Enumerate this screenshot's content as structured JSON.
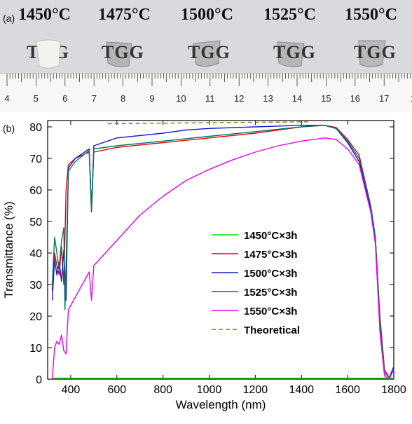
{
  "panel_a": {
    "label": "(a)",
    "temperatures": [
      "1450°C",
      "1475°C",
      "1500°C",
      "1525°C",
      "1550°C"
    ],
    "sample_text": "TGG",
    "ruler_numbers": [
      "4",
      "5",
      "6",
      "7",
      "8",
      "9",
      "10",
      "11",
      "12",
      "13",
      "14",
      "15",
      "16",
      "17",
      "1"
    ]
  },
  "panel_b": {
    "label": "(b)"
  },
  "chart_data": {
    "type": "line",
    "xlabel": "Wavelength (nm)",
    "ylabel": "Transmittance (%)",
    "xlim": [
      300,
      1800
    ],
    "ylim": [
      0,
      82
    ],
    "x_ticks": [
      400,
      600,
      800,
      1000,
      1200,
      1400,
      1600,
      1800
    ],
    "y_ticks": [
      0,
      10,
      20,
      30,
      40,
      50,
      60,
      70,
      80
    ],
    "legend_position": "center-right",
    "series": [
      {
        "name": "1450°C×3h",
        "color": "#00dd00",
        "dash": false,
        "points": [
          [
            320,
            0.3
          ],
          [
            500,
            0.3
          ],
          [
            800,
            0.3
          ],
          [
            1200,
            0.3
          ],
          [
            1600,
            0.3
          ],
          [
            1800,
            0.3
          ]
        ]
      },
      {
        "name": "1475°C×3h",
        "color": "#ee0000",
        "dash": false,
        "points": [
          [
            320,
            28
          ],
          [
            330,
            40
          ],
          [
            340,
            36
          ],
          [
            350,
            33
          ],
          [
            360,
            42
          ],
          [
            370,
            30
          ],
          [
            380,
            60
          ],
          [
            390,
            68
          ],
          [
            420,
            70
          ],
          [
            480,
            72
          ],
          [
            490,
            53
          ],
          [
            500,
            72
          ],
          [
            600,
            73.5
          ],
          [
            800,
            75
          ],
          [
            1000,
            76.5
          ],
          [
            1200,
            78
          ],
          [
            1400,
            80
          ],
          [
            1500,
            80.5
          ],
          [
            1550,
            79.8
          ],
          [
            1600,
            76
          ],
          [
            1650,
            71
          ],
          [
            1700,
            55
          ],
          [
            1720,
            45
          ],
          [
            1740,
            20
          ],
          [
            1760,
            3
          ],
          [
            1780,
            0.5
          ],
          [
            1800,
            3
          ]
        ]
      },
      {
        "name": "1500°C×3h",
        "color": "#1a1acc",
        "dash": false,
        "points": [
          [
            320,
            25
          ],
          [
            330,
            38
          ],
          [
            340,
            33
          ],
          [
            350,
            37
          ],
          [
            360,
            31
          ],
          [
            370,
            41
          ],
          [
            380,
            25
          ],
          [
            390,
            67
          ],
          [
            420,
            70
          ],
          [
            480,
            73
          ],
          [
            490,
            54
          ],
          [
            500,
            74
          ],
          [
            600,
            76.5
          ],
          [
            800,
            78
          ],
          [
            900,
            79
          ],
          [
            1000,
            79.5
          ],
          [
            1200,
            80
          ],
          [
            1400,
            80.5
          ],
          [
            1500,
            80.5
          ],
          [
            1550,
            79.5
          ],
          [
            1600,
            75
          ],
          [
            1650,
            69
          ],
          [
            1700,
            54
          ],
          [
            1720,
            45
          ],
          [
            1740,
            18
          ],
          [
            1760,
            2
          ],
          [
            1780,
            0.5
          ],
          [
            1800,
            4
          ]
        ]
      },
      {
        "name": "1525°C×3h",
        "color": "#007766",
        "dash": false,
        "points": [
          [
            320,
            30
          ],
          [
            330,
            45
          ],
          [
            340,
            40
          ],
          [
            350,
            35
          ],
          [
            360,
            44
          ],
          [
            370,
            48
          ],
          [
            375,
            22
          ],
          [
            390,
            66
          ],
          [
            420,
            69
          ],
          [
            480,
            72.5
          ],
          [
            490,
            53
          ],
          [
            500,
            73
          ],
          [
            600,
            74
          ],
          [
            800,
            75.5
          ],
          [
            1000,
            77
          ],
          [
            1200,
            78.5
          ],
          [
            1400,
            80
          ],
          [
            1500,
            80.5
          ],
          [
            1550,
            79.5
          ],
          [
            1600,
            75.5
          ],
          [
            1650,
            70
          ],
          [
            1700,
            55
          ],
          [
            1720,
            45
          ],
          [
            1740,
            19
          ],
          [
            1760,
            2
          ],
          [
            1780,
            0.5
          ],
          [
            1800,
            3
          ]
        ]
      },
      {
        "name": "1550°C×3h",
        "color": "#ee00ee",
        "dash": false,
        "points": [
          [
            320,
            0
          ],
          [
            330,
            10
          ],
          [
            340,
            12
          ],
          [
            350,
            11
          ],
          [
            360,
            14
          ],
          [
            370,
            9
          ],
          [
            380,
            8
          ],
          [
            390,
            22
          ],
          [
            420,
            26
          ],
          [
            480,
            34
          ],
          [
            490,
            25
          ],
          [
            500,
            36
          ],
          [
            600,
            44
          ],
          [
            700,
            52
          ],
          [
            800,
            58
          ],
          [
            900,
            63
          ],
          [
            1000,
            66.5
          ],
          [
            1100,
            69.5
          ],
          [
            1200,
            72
          ],
          [
            1300,
            74
          ],
          [
            1400,
            75.5
          ],
          [
            1500,
            76.5
          ],
          [
            1550,
            76
          ],
          [
            1600,
            73
          ],
          [
            1650,
            68
          ],
          [
            1700,
            53
          ],
          [
            1720,
            43
          ],
          [
            1740,
            15
          ],
          [
            1760,
            1
          ],
          [
            1780,
            0
          ],
          [
            1800,
            3
          ]
        ]
      },
      {
        "name": "Theoretical",
        "color": "#8b7a22",
        "dash": true,
        "points": [
          [
            560,
            81
          ],
          [
            1000,
            81.3
          ],
          [
            1440,
            81.6
          ]
        ]
      }
    ]
  }
}
